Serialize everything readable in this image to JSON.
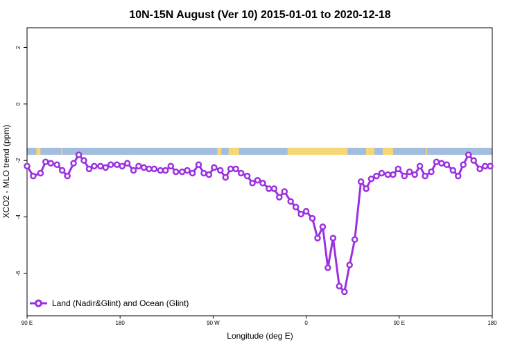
{
  "chart_data": {
    "type": "line",
    "title": "10N-15N August (Ver 10)   2015-01-01 to 2020-12-18",
    "xlabel": "Longitude (deg E)",
    "ylabel": "XCO2 - MLO trend (ppm)",
    "x_ticks": [
      {
        "lon": 90,
        "label": "90 E"
      },
      {
        "lon": 180,
        "label": "180"
      },
      {
        "lon": 270,
        "label": "90 W"
      },
      {
        "lon": 360,
        "label": "0"
      },
      {
        "lon": 450,
        "label": "90 E"
      },
      {
        "lon": 540,
        "label": "180"
      }
    ],
    "y_ticks": [
      2,
      0,
      -2,
      -4,
      -6
    ],
    "xlim": [
      90,
      540
    ],
    "ylim": [
      -7.5,
      2.7
    ],
    "land_ocean_band": {
      "y_top": -1.55,
      "y_bottom": -1.8,
      "ocean_color": "#a3bddf",
      "land_color": "#f7d775",
      "land_ranges": [
        [
          99,
          103
        ],
        [
          123,
          124
        ],
        [
          274,
          278
        ],
        [
          285,
          295
        ],
        [
          342,
          400
        ],
        [
          418,
          426
        ],
        [
          434,
          444
        ],
        [
          476,
          477
        ]
      ]
    },
    "series": [
      {
        "name": "Land (Nadir&Glint) and Ocean (Glint)",
        "color": "#9b30e0",
        "x": [
          90,
          96,
          103,
          108,
          113,
          119,
          124,
          129,
          135,
          140,
          145,
          150,
          155,
          161,
          166,
          171,
          177,
          182,
          187,
          193,
          198,
          203,
          208,
          213,
          219,
          224,
          229,
          234,
          240,
          245,
          250,
          256,
          261,
          266,
          271,
          277,
          282,
          287,
          292,
          297,
          303,
          308,
          313,
          318,
          324,
          329,
          334,
          339,
          345,
          350,
          355,
          360,
          366,
          371,
          376,
          381,
          386,
          392,
          397,
          402,
          407,
          413,
          418,
          423,
          428,
          433,
          439,
          444,
          449,
          455,
          460,
          465,
          470,
          475,
          481,
          486,
          491,
          496,
          502,
          507,
          512,
          517,
          522,
          528,
          533,
          538
        ],
        "y": [
          -2.2,
          -2.55,
          -2.45,
          -2.05,
          -2.1,
          -2.15,
          -2.35,
          -2.55,
          -2.1,
          -1.8,
          -2.0,
          -2.3,
          -2.2,
          -2.2,
          -2.25,
          -2.15,
          -2.15,
          -2.2,
          -2.1,
          -2.35,
          -2.2,
          -2.25,
          -2.3,
          -2.3,
          -2.35,
          -2.35,
          -2.2,
          -2.4,
          -2.4,
          -2.35,
          -2.45,
          -2.15,
          -2.45,
          -2.5,
          -2.25,
          -2.35,
          -2.6,
          -2.3,
          -2.3,
          -2.45,
          -2.55,
          -2.8,
          -2.7,
          -2.8,
          -3.0,
          -3.0,
          -3.3,
          -3.1,
          -3.45,
          -3.65,
          -3.9,
          -3.8,
          -4.05,
          -4.75,
          -4.35,
          -5.8,
          -4.75,
          -6.45,
          -6.65,
          -5.7,
          -4.8,
          -2.75,
          -3.0,
          -2.65,
          -2.55,
          -2.45,
          -2.5,
          -2.5,
          -2.3,
          -2.55,
          -2.4,
          -2.5,
          -2.2,
          -2.55,
          -2.4,
          -2.05,
          -2.1,
          -2.15,
          -2.35,
          -2.55,
          -2.15,
          -1.8,
          -2.0,
          -2.3,
          -2.2,
          -2.2
        ]
      }
    ],
    "legend": {
      "position": "bottom-left",
      "label": "Land (Nadir&Glint) and Ocean (Glint)"
    },
    "grid": false
  }
}
